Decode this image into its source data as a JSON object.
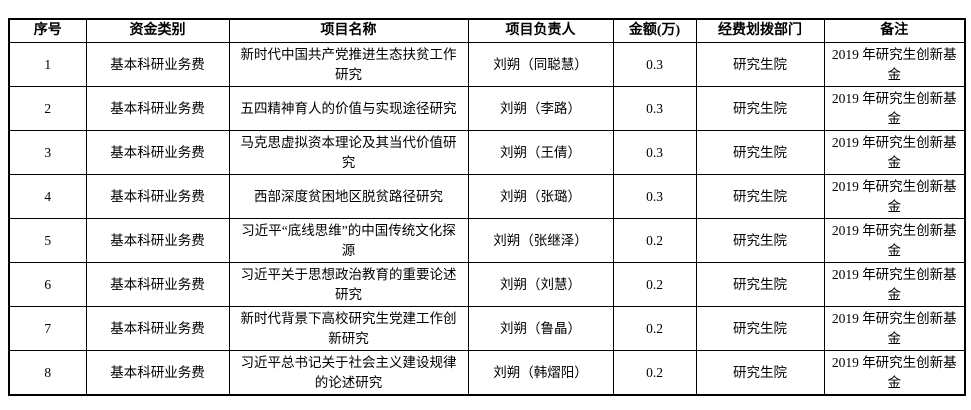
{
  "table": {
    "headers": {
      "no": "序号",
      "category": "资金类别",
      "project": "项目名称",
      "leader": "项目负责人",
      "amount": "金额(万)",
      "department": "经费划拨部门",
      "note": "备注"
    },
    "rows": [
      {
        "no": "1",
        "category": "基本科研业务费",
        "project": "新时代中国共产党推进生态扶贫工作研究",
        "leader": "刘朔（同聪慧）",
        "amount": "0.3",
        "department": "研究生院",
        "note": "2019 年研究生创新基金"
      },
      {
        "no": "2",
        "category": "基本科研业务费",
        "project": "五四精神育人的价值与实现途径研究",
        "leader": "刘朔（李路）",
        "amount": "0.3",
        "department": "研究生院",
        "note": "2019 年研究生创新基金"
      },
      {
        "no": "3",
        "category": "基本科研业务费",
        "project": "马克思虚拟资本理论及其当代价值研究",
        "leader": "刘朔（王倩）",
        "amount": "0.3",
        "department": "研究生院",
        "note": "2019 年研究生创新基金"
      },
      {
        "no": "4",
        "category": "基本科研业务费",
        "project": "西部深度贫困地区脱贫路径研究",
        "leader": "刘朔（张璐）",
        "amount": "0.3",
        "department": "研究生院",
        "note": "2019 年研究生创新基金"
      },
      {
        "no": "5",
        "category": "基本科研业务费",
        "project": "习近平“底线思维”的中国传统文化探源",
        "leader": "刘朔（张继泽）",
        "amount": "0.2",
        "department": "研究生院",
        "note": "2019 年研究生创新基金"
      },
      {
        "no": "6",
        "category": "基本科研业务费",
        "project": "习近平关于思想政治教育的重要论述研究",
        "leader": "刘朔（刘慧）",
        "amount": "0.2",
        "department": "研究生院",
        "note": "2019 年研究生创新基金"
      },
      {
        "no": "7",
        "category": "基本科研业务费",
        "project": "新时代背景下高校研究生党建工作创新研究",
        "leader": "刘朔（鲁晶）",
        "amount": "0.2",
        "department": "研究生院",
        "note": "2019 年研究生创新基金"
      },
      {
        "no": "8",
        "category": "基本科研业务费",
        "project": "习近平总书记关于社会主义建设规律的论述研究",
        "leader": "刘朔（韩熠阳）",
        "amount": "0.2",
        "department": "研究生院",
        "note": "2019 年研究生创新基金"
      }
    ]
  },
  "colors": {
    "border": "#000000",
    "background": "#ffffff",
    "text": "#000000"
  }
}
